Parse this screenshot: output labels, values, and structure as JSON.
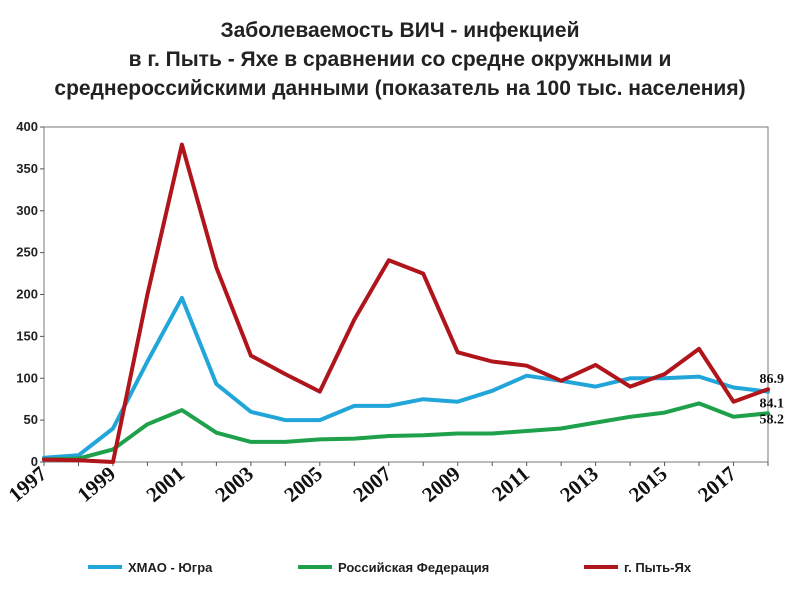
{
  "title_lines": [
    "Заболеваемость ВИЧ - инфекцией",
    "в г. Пыть - Яхе  в сравнении со средне окружными и",
    "среднероссийскими данными (показатель на 100 тыс. населения)"
  ],
  "chart_data": {
    "type": "line",
    "title": "Заболеваемость ВИЧ - инфекцией в г. Пыть - Яхе  в сравнении со средне окружными и среднероссийскими данными (показатель на 100 тыс. населения)",
    "x": [
      1997,
      1998,
      1999,
      2000,
      2001,
      2002,
      2003,
      2004,
      2005,
      2006,
      2007,
      2008,
      2009,
      2010,
      2011,
      2012,
      2013,
      2014,
      2015,
      2016,
      2017,
      2018
    ],
    "x_tick_labels": [
      "1997",
      "1999",
      "2001",
      "2003",
      "2005",
      "2007",
      "2009",
      "2011",
      "2013",
      "2015",
      "2017"
    ],
    "ylim": [
      0,
      400
    ],
    "y_ticks": [
      "0",
      "50",
      "100",
      "150",
      "200",
      "250",
      "300",
      "350",
      "400"
    ],
    "grid": false,
    "legend_position": "bottom",
    "series": [
      {
        "name": "ХМАО - Югра",
        "color": "#22a6d9",
        "values": [
          5,
          8,
          40,
          120,
          196,
          93,
          60,
          50,
          50,
          67,
          67,
          75,
          72,
          85,
          103,
          97,
          90,
          100,
          100,
          102,
          89,
          84.1
        ]
      },
      {
        "name": "Российская Федерация",
        "color": "#1fa04a",
        "values": [
          3,
          4,
          15,
          45,
          62,
          35,
          24,
          24,
          27,
          28,
          31,
          32,
          34,
          34,
          37,
          40,
          47,
          54,
          59,
          70,
          54,
          58.2
        ]
      },
      {
        "name": "г. Пыть-Ях",
        "color": "#b0151c",
        "values": [
          3,
          2,
          0,
          200,
          379,
          232,
          127,
          105,
          84,
          170,
          241,
          225,
          131,
          120,
          115,
          97,
          116,
          90,
          105,
          135,
          72,
          86.9
        ]
      }
    ],
    "end_labels": [
      {
        "series": "г. Пыть-Ях",
        "text": "86.9"
      },
      {
        "series": "ХМАО - Югра",
        "text": "84.1"
      },
      {
        "series": "Российская Федерация",
        "text": "58.2"
      }
    ]
  }
}
